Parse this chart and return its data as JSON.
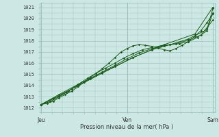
{
  "bg_color": "#cde8e4",
  "grid_color": "#9ec4c0",
  "line_color": "#1a5c1a",
  "marker_color": "#1a5c1a",
  "ylabel_values": [
    1012,
    1013,
    1014,
    1015,
    1016,
    1017,
    1018,
    1019,
    1020,
    1021
  ],
  "ymin": 1011.6,
  "ymax": 1021.4,
  "xlabel": "Pression niveau de la mer( hPa )",
  "xtick_labels": [
    "Jeu",
    "Ven",
    "Sam"
  ],
  "xtick_positions": [
    0,
    1,
    2
  ],
  "line1_x": [
    0.0,
    0.07,
    0.14,
    0.21,
    0.28,
    0.36,
    0.43,
    0.5,
    0.57,
    0.64,
    0.71,
    0.79,
    0.86,
    0.93,
    1.0,
    1.07,
    1.14,
    1.21,
    1.29,
    1.36,
    1.43,
    1.5,
    1.57,
    1.64,
    1.71,
    1.79,
    1.86,
    1.93,
    2.0
  ],
  "line1_y": [
    1012.3,
    1012.4,
    1012.6,
    1012.9,
    1013.2,
    1013.5,
    1013.9,
    1014.3,
    1014.7,
    1015.1,
    1015.5,
    1016.0,
    1016.5,
    1017.0,
    1017.3,
    1017.55,
    1017.65,
    1017.6,
    1017.5,
    1017.35,
    1017.2,
    1017.1,
    1017.3,
    1017.6,
    1017.9,
    1018.4,
    1018.9,
    1019.6,
    1020.4
  ],
  "line2_x": [
    0.0,
    0.1,
    0.21,
    0.32,
    0.43,
    0.54,
    0.64,
    0.75,
    0.86,
    0.96,
    1.07,
    1.18,
    1.29,
    1.39,
    1.5,
    1.61,
    1.71,
    1.82,
    1.93,
    2.0
  ],
  "line2_y": [
    1012.3,
    1012.55,
    1013.0,
    1013.5,
    1014.1,
    1014.65,
    1015.1,
    1015.55,
    1016.0,
    1016.45,
    1016.85,
    1017.2,
    1017.4,
    1017.55,
    1017.65,
    1017.75,
    1017.9,
    1018.3,
    1018.9,
    1020.5
  ],
  "line3_x": [
    0.0,
    0.14,
    0.29,
    0.43,
    0.57,
    0.71,
    0.86,
    1.0,
    1.14,
    1.29,
    1.43,
    1.57,
    1.71,
    1.86,
    2.0
  ],
  "line3_y": [
    1012.3,
    1012.8,
    1013.4,
    1014.0,
    1014.6,
    1015.2,
    1015.8,
    1016.4,
    1016.9,
    1017.3,
    1017.55,
    1017.75,
    1018.05,
    1018.5,
    1019.85
  ],
  "line4_x": [
    0.0,
    0.21,
    0.43,
    0.64,
    0.86,
    1.07,
    1.29,
    1.5,
    1.71,
    1.93,
    2.0
  ],
  "line4_y": [
    1012.3,
    1013.2,
    1014.1,
    1014.9,
    1015.7,
    1016.5,
    1017.2,
    1017.65,
    1018.15,
    1019.0,
    1020.9
  ],
  "line5_x": [
    0.0,
    0.36,
    0.71,
    1.07,
    1.43,
    1.79,
    2.0
  ],
  "line5_y": [
    1012.3,
    1013.7,
    1015.1,
    1016.5,
    1017.65,
    1018.6,
    1021.0
  ]
}
